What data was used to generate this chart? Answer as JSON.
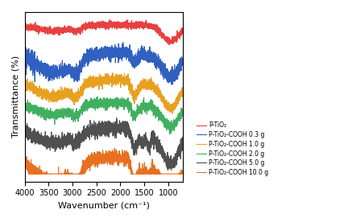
{
  "xlabel": "Wavenumber (cm⁻¹)",
  "ylabel": "Transmittance (%)",
  "xlim": [
    4000,
    700
  ],
  "x_ticks": [
    4000,
    3500,
    3000,
    2500,
    2000,
    1500,
    1000
  ],
  "legend_labels": [
    "P-TiO₂",
    "P-TiO₂-COOH 0.3 g",
    "P-TiO₂-COOH 1.0 g",
    "P-TiO₂-COOH 2.0 g",
    "P-TiO₂-COOH 5.0 g",
    "P-TiO₂-COOH 10.0 g"
  ],
  "colors": [
    "#e84040",
    "#3060c0",
    "#e8a020",
    "#40b060",
    "#505050",
    "#e87020"
  ],
  "offsets": [
    0.92,
    0.75,
    0.58,
    0.44,
    0.28,
    0.1
  ],
  "background": "#ffffff",
  "linewidth": 0.8,
  "styles": [
    {
      "oh": 0.15,
      "noise": 0.01,
      "cooh": 0.0,
      "tio": 0.2,
      "extra": false
    },
    {
      "oh": 0.5,
      "noise": 0.02,
      "cooh": 0.15,
      "tio": 0.3,
      "extra": false
    },
    {
      "oh": 0.4,
      "noise": 0.015,
      "cooh": 0.25,
      "tio": 0.35,
      "extra": false
    },
    {
      "oh": 0.3,
      "noise": 0.015,
      "cooh": 0.2,
      "tio": 0.3,
      "extra": false
    },
    {
      "oh": 0.35,
      "noise": 0.02,
      "cooh": 0.3,
      "tio": 0.45,
      "extra": true
    },
    {
      "oh": 0.6,
      "noise": 0.02,
      "cooh": 0.4,
      "tio": 0.5,
      "extra": true
    }
  ]
}
